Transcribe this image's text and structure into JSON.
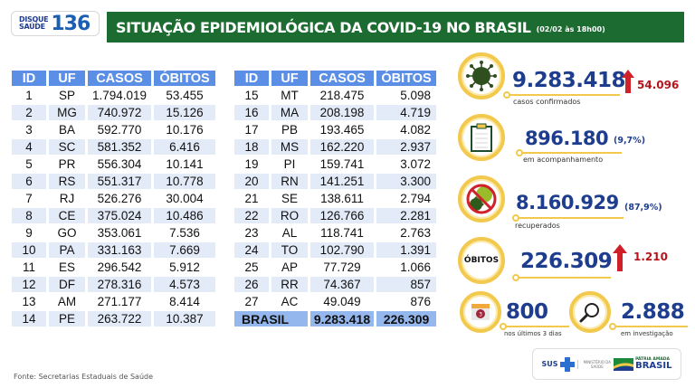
{
  "logo": {
    "line1": "DISQUE",
    "line2": "SAÚDE",
    "number": "136"
  },
  "header": {
    "title": "SITUAÇÃO EPIDEMIOLÓGICA DA COVID-19 NO BRASIL",
    "date": "(02/02 às 18h00)",
    "bg_color": "#1c6b31"
  },
  "table": {
    "columns": [
      "ID",
      "UF",
      "CASOS",
      "ÓBITOS"
    ],
    "left_rows": [
      [
        "1",
        "SP",
        "1.794.019",
        "53.455"
      ],
      [
        "2",
        "MG",
        "740.972",
        "15.126"
      ],
      [
        "3",
        "BA",
        "592.770",
        "10.176"
      ],
      [
        "4",
        "SC",
        "581.352",
        "6.416"
      ],
      [
        "5",
        "PR",
        "556.304",
        "10.141"
      ],
      [
        "6",
        "RS",
        "551.317",
        "10.778"
      ],
      [
        "7",
        "RJ",
        "526.276",
        "30.004"
      ],
      [
        "8",
        "CE",
        "375.024",
        "10.486"
      ],
      [
        "9",
        "GO",
        "353.061",
        "7.536"
      ],
      [
        "10",
        "PA",
        "331.163",
        "7.669"
      ],
      [
        "11",
        "ES",
        "296.542",
        "5.912"
      ],
      [
        "12",
        "DF",
        "278.316",
        "4.573"
      ],
      [
        "13",
        "AM",
        "271.177",
        "8.414"
      ],
      [
        "14",
        "PE",
        "263.722",
        "10.387"
      ]
    ],
    "right_rows": [
      [
        "15",
        "MT",
        "218.475",
        "5.098"
      ],
      [
        "16",
        "MA",
        "208.198",
        "4.719"
      ],
      [
        "17",
        "PB",
        "193.465",
        "4.082"
      ],
      [
        "18",
        "MS",
        "162.220",
        "2.937"
      ],
      [
        "19",
        "PI",
        "159.741",
        "3.072"
      ],
      [
        "20",
        "RN",
        "141.251",
        "3.300"
      ],
      [
        "21",
        "SE",
        "138.611",
        "2.794"
      ],
      [
        "22",
        "RO",
        "126.766",
        "2.281"
      ],
      [
        "23",
        "AL",
        "118.741",
        "2.763"
      ],
      [
        "24",
        "TO",
        "102.790",
        "1.391"
      ],
      [
        "25",
        "AP",
        "77.729",
        "1.066"
      ],
      [
        "26",
        "RR",
        "74.367",
        "857"
      ],
      [
        "27",
        "AC",
        "49.049",
        "876"
      ]
    ],
    "total": {
      "label": "BRASIL",
      "casos": "9.283.418",
      "obitos": "226.309"
    },
    "header_color": "#5b8fe6",
    "alt_row_color": "#e3ebf8",
    "total_color": "#94b7ee"
  },
  "stats": {
    "confirmed": {
      "value": "9.283.418",
      "increase": "54.096",
      "label": "casos confirmados",
      "icon": "virus-icon"
    },
    "monitoring": {
      "value": "896.180",
      "percent": "(9,7%)",
      "label": "em acompanhamento",
      "icon": "clipboard-icon"
    },
    "recovered": {
      "value": "8.160.929",
      "percent": "(87,9%)",
      "label": "recuperados",
      "icon": "no-virus-icon"
    },
    "deaths": {
      "badge": "ÓBITOS",
      "value": "226.309",
      "increase": "1.210"
    },
    "last3days": {
      "value": "800",
      "label": "nos últimos 3 dias",
      "calendar_day": "3",
      "icon": "calendar-icon"
    },
    "investigation": {
      "value": "2.888",
      "label": "em investigação",
      "icon": "magnifier-icon"
    }
  },
  "colors": {
    "accent_yellow": "#f2c94c",
    "number_blue": "#1e3d8f",
    "increase_red": "#b5141c"
  },
  "footer": {
    "source": "Fonte: Secretarias Estaduais de Saúde",
    "sus": "SUS",
    "ministry_line1": "MINISTÉRIO DA",
    "ministry_line2": "SAÚDE",
    "gov_line1": "PÁTRIA AMADA",
    "gov_line2": "BRASIL"
  }
}
